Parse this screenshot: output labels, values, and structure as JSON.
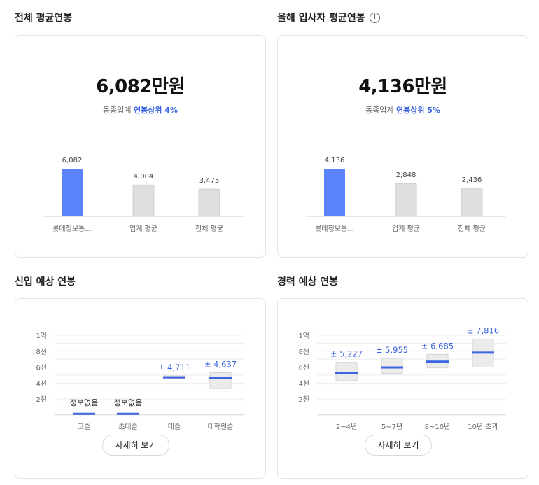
{
  "sections": {
    "total_avg_title": "전체 평균연봉",
    "new_hire_avg_title": "올해 입사자 평균연봉",
    "entry_title": "신입 예상 연봉",
    "career_title": "경력 예상 연봉"
  },
  "icons": {
    "info": "info-icon"
  },
  "colors": {
    "accent": "#3b64e0",
    "company_bar": "#5a82fa",
    "other_bar": "#dedede"
  },
  "total_avg": {
    "headline": "6,082만원",
    "rank_prefix": "동종업계",
    "rank_highlight": "연봉상위 4%"
  },
  "new_hire_avg": {
    "headline": "4,136만원",
    "rank_prefix": "동종업계",
    "rank_highlight": "연봉상위 5%"
  },
  "detail_button_label": "자세히 보기",
  "chart_data": [
    {
      "id": "total_avg",
      "type": "bar",
      "categories": [
        "롯데정보통...",
        "업계 평균",
        "전체 평균"
      ],
      "values": [
        6082,
        4004,
        3475
      ],
      "value_labels": [
        "6,082",
        "4,004",
        "3,475"
      ],
      "highlight_index": 0
    },
    {
      "id": "new_hire_avg",
      "type": "bar",
      "categories": [
        "롯데정보통...",
        "업계 평균",
        "전체 평균"
      ],
      "values": [
        4136,
        2848,
        2436
      ],
      "value_labels": [
        "4,136",
        "2,848",
        "2,436"
      ],
      "highlight_index": 0
    },
    {
      "id": "entry",
      "type": "bar",
      "categories": [
        "고졸",
        "초대졸",
        "대졸",
        "대학원졸"
      ],
      "y_ticks": [
        "1억",
        "8천",
        "6천",
        "4천",
        "2천"
      ],
      "y_tick_values": [
        10000,
        8000,
        6000,
        4000,
        2000
      ],
      "ylim": [
        0,
        10000
      ],
      "values": [
        null,
        null,
        4711,
        4637
      ],
      "value_labels": [
        "정보없음",
        "정보없음",
        "± 4,711",
        "± 4,637"
      ],
      "ranges": [
        null,
        null,
        [
          4500,
          4900
        ],
        [
          3300,
          5300
        ]
      ]
    },
    {
      "id": "career",
      "type": "bar",
      "categories": [
        "2~4년",
        "5~7년",
        "8~10년",
        "10년 초과"
      ],
      "y_ticks": [
        "1억",
        "8천",
        "6천",
        "4천",
        "2천"
      ],
      "y_tick_values": [
        10000,
        8000,
        6000,
        4000,
        2000
      ],
      "ylim": [
        0,
        10000
      ],
      "values": [
        5227,
        5955,
        6685,
        7816
      ],
      "value_labels": [
        "± 5,227",
        "± 5,955",
        "± 6,685",
        "± 7,816"
      ],
      "ranges": [
        [
          4300,
          6600
        ],
        [
          5200,
          7100
        ],
        [
          5900,
          7600
        ],
        [
          6000,
          9500
        ]
      ]
    }
  ]
}
